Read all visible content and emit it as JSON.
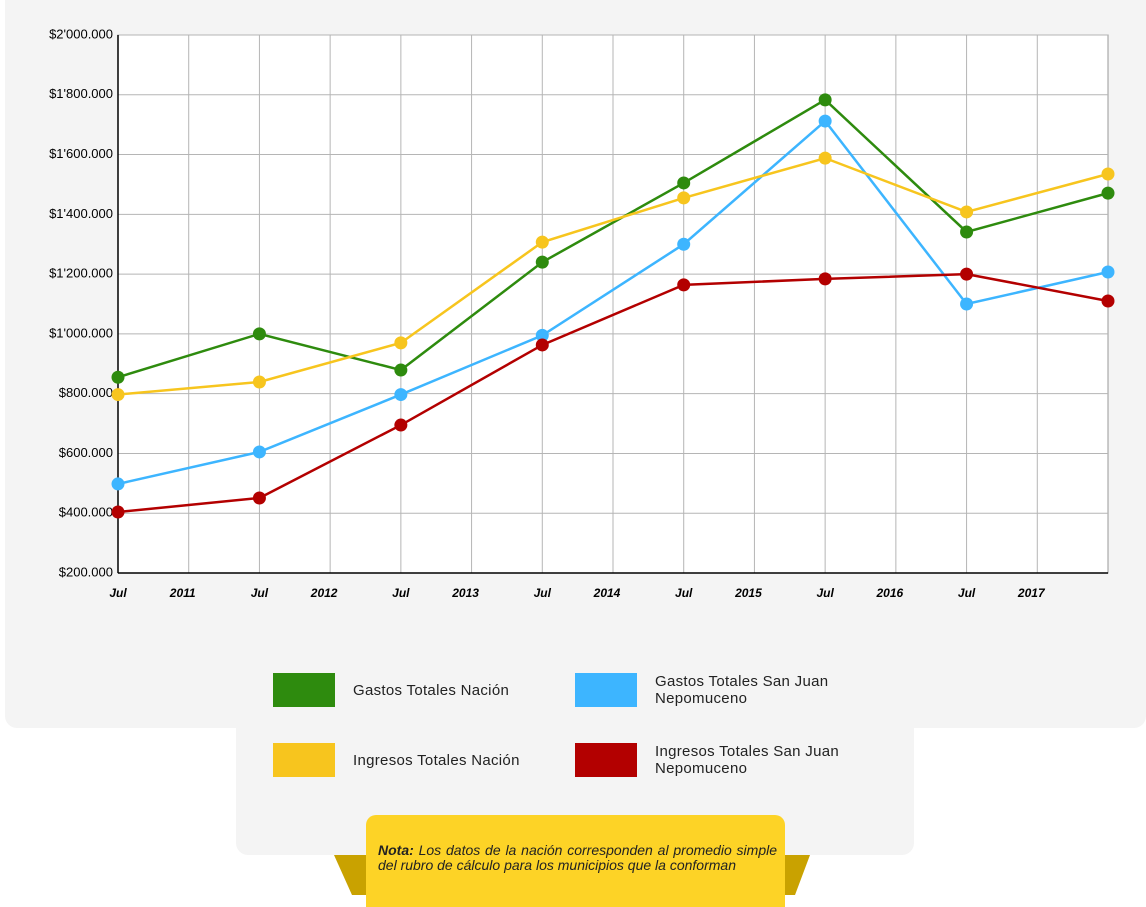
{
  "chart_data": {
    "type": "line",
    "x": [
      2010.5,
      2011.5,
      2012.5,
      2013.5,
      2014.5,
      2015.5,
      2016.5,
      2017.5
    ],
    "xlim": [
      2010.5,
      2017.5
    ],
    "xticks": [
      {
        "value": 2010.5,
        "label": "Jul"
      },
      {
        "value": 2011,
        "label": "2011"
      },
      {
        "value": 2011.5,
        "label": "Jul"
      },
      {
        "value": 2012,
        "label": "2012"
      },
      {
        "value": 2012.5,
        "label": "Jul"
      },
      {
        "value": 2013,
        "label": "2013"
      },
      {
        "value": 2013.5,
        "label": "Jul"
      },
      {
        "value": 2014,
        "label": "2014"
      },
      {
        "value": 2014.5,
        "label": "Jul"
      },
      {
        "value": 2015,
        "label": "2015"
      },
      {
        "value": 2015.5,
        "label": "Jul"
      },
      {
        "value": 2016,
        "label": "2016"
      },
      {
        "value": 2016.5,
        "label": "Jul"
      },
      {
        "value": 2017,
        "label": "2017"
      }
    ],
    "ylim": [
      200000,
      2000000
    ],
    "yticks": [
      {
        "value": 200000,
        "label": "$200.000"
      },
      {
        "value": 400000,
        "label": "$400.000"
      },
      {
        "value": 600000,
        "label": "$600.000"
      },
      {
        "value": 800000,
        "label": "$800.000"
      },
      {
        "value": 1000000,
        "label": "$1'000.000"
      },
      {
        "value": 1200000,
        "label": "$1'200.000"
      },
      {
        "value": 1400000,
        "label": "$1'400.000"
      },
      {
        "value": 1600000,
        "label": "$1'600.000"
      },
      {
        "value": 1800000,
        "label": "$1'800.000"
      },
      {
        "value": 2000000,
        "label": "$2'000.000"
      }
    ],
    "grid": true,
    "series": [
      {
        "name": "Gastos Totales Nación",
        "color": "#2e8b0e",
        "values": [
          855000,
          1000000,
          879000,
          1240000,
          1505000,
          1783000,
          1341000,
          1471000
        ]
      },
      {
        "name": "Gastos Totales San Juan Nepomuceno",
        "color": "#3db5ff",
        "values": [
          498000,
          605000,
          797000,
          995000,
          1300000,
          1712000,
          1100000,
          1207000
        ]
      },
      {
        "name": "Ingresos Totales Nación",
        "color": "#f7c51e",
        "values": [
          797000,
          839000,
          970000,
          1307000,
          1455000,
          1588000,
          1408000,
          1535000
        ]
      },
      {
        "name": "Ingresos Totales San Juan Nepomuceno",
        "color": "#b30000",
        "values": [
          404000,
          451000,
          695000,
          963000,
          1164000,
          1184000,
          1200000,
          1110000
        ]
      }
    ],
    "note": {
      "label": "Nota:",
      "text": "Los datos de la nación corresponden al promedio simple del rubro de cálculo para los municipios que la conforman"
    }
  }
}
